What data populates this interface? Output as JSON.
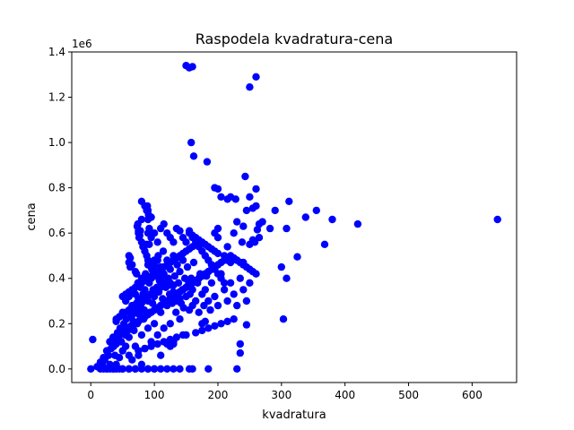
{
  "chart_data": {
    "type": "scatter",
    "title": "Raspodela kvadratura-cena",
    "xlabel": "kvadratura",
    "ylabel": "cena",
    "y_offset_label": "1e6",
    "xlim": [
      -30,
      670
    ],
    "ylim": [
      -60000,
      1400000
    ],
    "xticks": [
      0,
      100,
      200,
      300,
      400,
      500,
      600
    ],
    "xtick_labels": [
      "0",
      "100",
      "200",
      "300",
      "400",
      "500",
      "600"
    ],
    "yticks": [
      0,
      200000,
      400000,
      600000,
      800000,
      1000000,
      1200000,
      1400000
    ],
    "ytick_labels": [
      "0.0",
      "0.2",
      "0.4",
      "0.6",
      "0.8",
      "1.0",
      "1.2",
      "1.4"
    ],
    "grid": false,
    "legend": "none",
    "point_color": "#0000ff",
    "series": [
      {
        "x": [
          0,
          3,
          10,
          15,
          18,
          20,
          22,
          25,
          25,
          28,
          30,
          30,
          32,
          35,
          35,
          36,
          38,
          40,
          40,
          40,
          42,
          44,
          45,
          45,
          46,
          48,
          50,
          50,
          50,
          52,
          54,
          55,
          55,
          56,
          58,
          60,
          60,
          60,
          60,
          62,
          63,
          64,
          65,
          65,
          66,
          67,
          68,
          70,
          70,
          70,
          70,
          72,
          73,
          74,
          75,
          75,
          76,
          77,
          78,
          80,
          80,
          80,
          80,
          82,
          83,
          84,
          85,
          85,
          86,
          87,
          88,
          90,
          90,
          90,
          90,
          92,
          93,
          94,
          95,
          95,
          96,
          97,
          98,
          100,
          100,
          100,
          100,
          102,
          103,
          104,
          105,
          105,
          106,
          107,
          108,
          110,
          110,
          110,
          112,
          113,
          114,
          115,
          115,
          116,
          118,
          120,
          120,
          120,
          122,
          124,
          125,
          125,
          126,
          128,
          130,
          130,
          130,
          132,
          134,
          135,
          136,
          138,
          140,
          140,
          142,
          144,
          145,
          146,
          148,
          150,
          150,
          152,
          154,
          155,
          156,
          158,
          160,
          160,
          162,
          165,
          168,
          170,
          172,
          175,
          178,
          180,
          182,
          185,
          188,
          190,
          195,
          200,
          205,
          210,
          215,
          220,
          225,
          230,
          235,
          240,
          245,
          250,
          255,
          260,
          80,
          85,
          88,
          90,
          92,
          88,
          95,
          100,
          105,
          110,
          115,
          120,
          125,
          130,
          135,
          140,
          145,
          150,
          155,
          160,
          165,
          170,
          175,
          180,
          185,
          190,
          195,
          200,
          205,
          210,
          215,
          220,
          60,
          62,
          65,
          70,
          72,
          75,
          78,
          80,
          82,
          85,
          88,
          90,
          92,
          95,
          98,
          100,
          105,
          110,
          115,
          120,
          125,
          130,
          135,
          140,
          50,
          55,
          60,
          65,
          70,
          75,
          80,
          85,
          90,
          95,
          100,
          105,
          110,
          115,
          120,
          125,
          130,
          135,
          140,
          145,
          150,
          155,
          160,
          165,
          170,
          175,
          180,
          40,
          45,
          50,
          55,
          60,
          65,
          70,
          75,
          80,
          85,
          90,
          95,
          100,
          105,
          110,
          115,
          120,
          125,
          130,
          30,
          35,
          40,
          45,
          50,
          55,
          60,
          65,
          70,
          75,
          80,
          85,
          90,
          95,
          100,
          105,
          110,
          115,
          120,
          125,
          130,
          135,
          140,
          145,
          150,
          155,
          160,
          165,
          170,
          175,
          180,
          185,
          190,
          195,
          200,
          205,
          210,
          215,
          220,
          225,
          230,
          235,
          240,
          245,
          250,
          255,
          260,
          265,
          270,
          90,
          91,
          88,
          89,
          90,
          92,
          75,
          76,
          77,
          73,
          74,
          80,
          95,
          100,
          105,
          60,
          62,
          65,
          68,
          100,
          105,
          110,
          115,
          120,
          125,
          130,
          135,
          140,
          145,
          150,
          155,
          160,
          165,
          170,
          175,
          180,
          185,
          190,
          195,
          200,
          155,
          160,
          165,
          170,
          175,
          180,
          185,
          190,
          195,
          200,
          210,
          220,
          230,
          240,
          250,
          260,
          150,
          155,
          160,
          158,
          162,
          183,
          243,
          290,
          260,
          195,
          200,
          205,
          215,
          220,
          228,
          250,
          245,
          230,
          240,
          258,
          262,
          282,
          300,
          308,
          308,
          312,
          325,
          338,
          355,
          368,
          380,
          420,
          640,
          225,
          200,
          215,
          238,
          250,
          255,
          265,
          245,
          235,
          303,
          235,
          230,
          185,
          160,
          155,
          140,
          130,
          120,
          110,
          100,
          90,
          80,
          70,
          60,
          50,
          45,
          40,
          35,
          30,
          25,
          20,
          15,
          75,
          85,
          95,
          105,
          115,
          125,
          135,
          145,
          165,
          175,
          185,
          195,
          205,
          215,
          225
        ],
        "y": [
          0,
          130000,
          10000,
          30000,
          20000,
          50000,
          40000,
          0,
          80000,
          60000,
          20000,
          120000,
          90000,
          0,
          140000,
          100000,
          60000,
          20000,
          110000,
          210000,
          160000,
          130000,
          50000,
          230000,
          180000,
          120000,
          0,
          80000,
          250000,
          200000,
          150000,
          100000,
          300000,
          220000,
          170000,
          0,
          60000,
          140000,
          320000,
          260000,
          190000,
          230000,
          40000,
          280000,
          350000,
          210000,
          170000,
          0,
          100000,
          250000,
          330000,
          290000,
          200000,
          380000,
          60000,
          310000,
          240000,
          270000,
          360000,
          20000,
          150000,
          290000,
          400000,
          330000,
          220000,
          260000,
          90000,
          350000,
          420000,
          310000,
          240000,
          0,
          180000,
          300000,
          460000,
          380000,
          250000,
          330000,
          120000,
          400000,
          440000,
          290000,
          350000,
          0,
          200000,
          320000,
          480000,
          410000,
          270000,
          360000,
          150000,
          430000,
          500000,
          340000,
          390000,
          60000,
          250000,
          450000,
          380000,
          310000,
          520000,
          180000,
          420000,
          300000,
          360000,
          110000,
          280000,
          480000,
          400000,
          330000,
          200000,
          440000,
          370000,
          290000,
          120000,
          340000,
          500000,
          410000,
          250000,
          300000,
          460000,
          380000,
          220000,
          430000,
          290000,
          350000,
          480000,
          270000,
          400000,
          320000,
          150000,
          450000,
          380000,
          260000,
          330000,
          400000,
          280000,
          350000,
          470000,
          300000,
          380000,
          250000,
          420000,
          330000,
          280000,
          350000,
          410000,
          300000,
          260000,
          380000,
          320000,
          280000,
          420000,
          350000,
          300000,
          380000,
          330000,
          280000,
          400000,
          350000,
          300000,
          380000,
          710000,
          720000,
          740000,
          720000,
          700000,
          700000,
          550000,
          550000,
          580000,
          600000,
          560000,
          620000,
          640000,
          600000,
          580000,
          560000,
          620000,
          610000,
          580000,
          560000,
          600000,
          580000,
          560000,
          540000,
          520000,
          500000,
          480000,
          460000,
          440000,
          420000,
          400000,
          380000,
          480000,
          470000,
          500000,
          450000,
          460000,
          430000,
          420000,
          600000,
          610000,
          560000,
          540000,
          520000,
          500000,
          480000,
          460000,
          450000,
          440000,
          430000,
          420000,
          410000,
          400000,
          390000,
          380000,
          370000,
          300000,
          310000,
          320000,
          330000,
          340000,
          350000,
          360000,
          370000,
          380000,
          390000,
          400000,
          410000,
          420000,
          430000,
          440000,
          450000,
          460000,
          470000,
          480000,
          490000,
          500000,
          510000,
          520000,
          530000,
          540000,
          550000,
          560000,
          200000,
          210000,
          220000,
          230000,
          240000,
          250000,
          260000,
          270000,
          280000,
          290000,
          300000,
          310000,
          320000,
          330000,
          340000,
          350000,
          360000,
          370000,
          380000,
          100000,
          110000,
          120000,
          130000,
          140000,
          150000,
          160000,
          170000,
          180000,
          190000,
          200000,
          210000,
          220000,
          230000,
          240000,
          250000,
          260000,
          270000,
          280000,
          290000,
          300000,
          310000,
          320000,
          330000,
          340000,
          350000,
          360000,
          370000,
          380000,
          390000,
          400000,
          410000,
          420000,
          430000,
          440000,
          450000,
          460000,
          470000,
          480000,
          490000,
          500000,
          490000,
          480000,
          470000,
          460000,
          450000,
          440000,
          430000,
          420000,
          640000,
          650000,
          660000,
          680000,
          700000,
          720000,
          600000,
          620000,
          610000,
          580000,
          590000,
          630000,
          640000,
          660000,
          670000,
          460000,
          480000,
          470000,
          490000,
          240000,
          250000,
          260000,
          270000,
          280000,
          290000,
          300000,
          310000,
          320000,
          330000,
          340000,
          350000,
          360000,
          370000,
          380000,
          390000,
          400000,
          410000,
          420000,
          430000,
          440000,
          600000,
          620000,
          610000,
          590000,
          580000,
          570000,
          560000,
          550000,
          540000,
          530000,
          520000,
          510000,
          500000,
          490000,
          480000,
          470000,
          1245000,
          1290000,
          1340000,
          1330000,
          1335000,
          1000000,
          940000,
          915000,
          850000,
          700000,
          795000,
          800000,
          795000,
          760000,
          750000,
          760000,
          750000,
          760000,
          700000,
          650000,
          630000,
          560000,
          615000,
          620000,
          450000,
          620000,
          400000,
          740000,
          495000,
          670000,
          700000,
          550000,
          660000,
          640000,
          660000,
          600000,
          580000,
          540000,
          560000,
          550000,
          570000,
          580000,
          195000,
          110000,
          220000,
          70000,
          0,
          0,
          0,
          0,
          0,
          0,
          0,
          0,
          0,
          0,
          0,
          0,
          0,
          0,
          0,
          0,
          0,
          0,
          0,
          0,
          0,
          80000,
          90000,
          100000,
          110000,
          120000,
          130000,
          140000,
          150000,
          160000,
          170000,
          180000,
          190000,
          200000,
          210000,
          220000
        ]
      }
    ]
  }
}
